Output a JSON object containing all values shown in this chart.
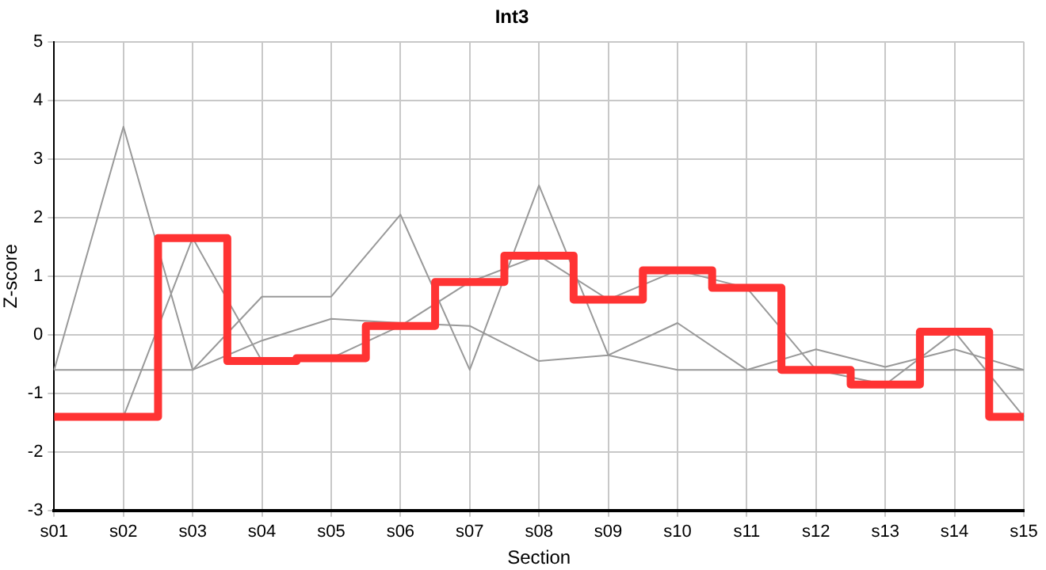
{
  "chart_data": {
    "type": "line",
    "title": "Int3",
    "xlabel": "Section",
    "ylabel": "Z-score",
    "categories": [
      "s01",
      "s02",
      "s03",
      "s04",
      "s05",
      "s06",
      "s07",
      "s08",
      "s09",
      "s10",
      "s11",
      "s12",
      "s13",
      "s14",
      "s15"
    ],
    "series": [
      {
        "type": "line",
        "color": "#999999",
        "values": [
          -0.6,
          3.55,
          -0.6,
          -0.1,
          0.27,
          0.2,
          0.15,
          -0.45,
          -0.35,
          -0.6,
          -0.6,
          -0.6,
          -0.6,
          -0.6,
          -0.6
        ]
      },
      {
        "type": "line",
        "color": "#999999",
        "values": [
          -0.6,
          -0.6,
          -0.6,
          0.65,
          0.65,
          2.05,
          -0.6,
          2.55,
          -0.35,
          0.2,
          -0.6,
          -0.25,
          -0.55,
          -0.25,
          -0.6
        ]
      },
      {
        "type": "line",
        "color": "#999999",
        "values": [
          null,
          -1.4,
          1.65,
          -0.45,
          -0.4,
          0.15,
          0.9,
          1.35,
          0.6,
          1.1,
          0.8,
          -0.6,
          -0.85,
          0.05,
          -1.4
        ]
      },
      {
        "type": "step",
        "color": "#ff3333",
        "values": [
          -1.4,
          -1.4,
          1.65,
          -0.45,
          -0.4,
          0.15,
          0.9,
          1.35,
          0.6,
          1.1,
          0.8,
          -0.6,
          -0.85,
          0.05,
          -1.4
        ]
      }
    ],
    "ylim": [
      -3,
      5
    ],
    "yticks": [
      -3,
      -2,
      -1,
      0,
      1,
      2,
      3,
      4,
      5
    ],
    "grid": true,
    "legend": false,
    "marker": "none"
  }
}
